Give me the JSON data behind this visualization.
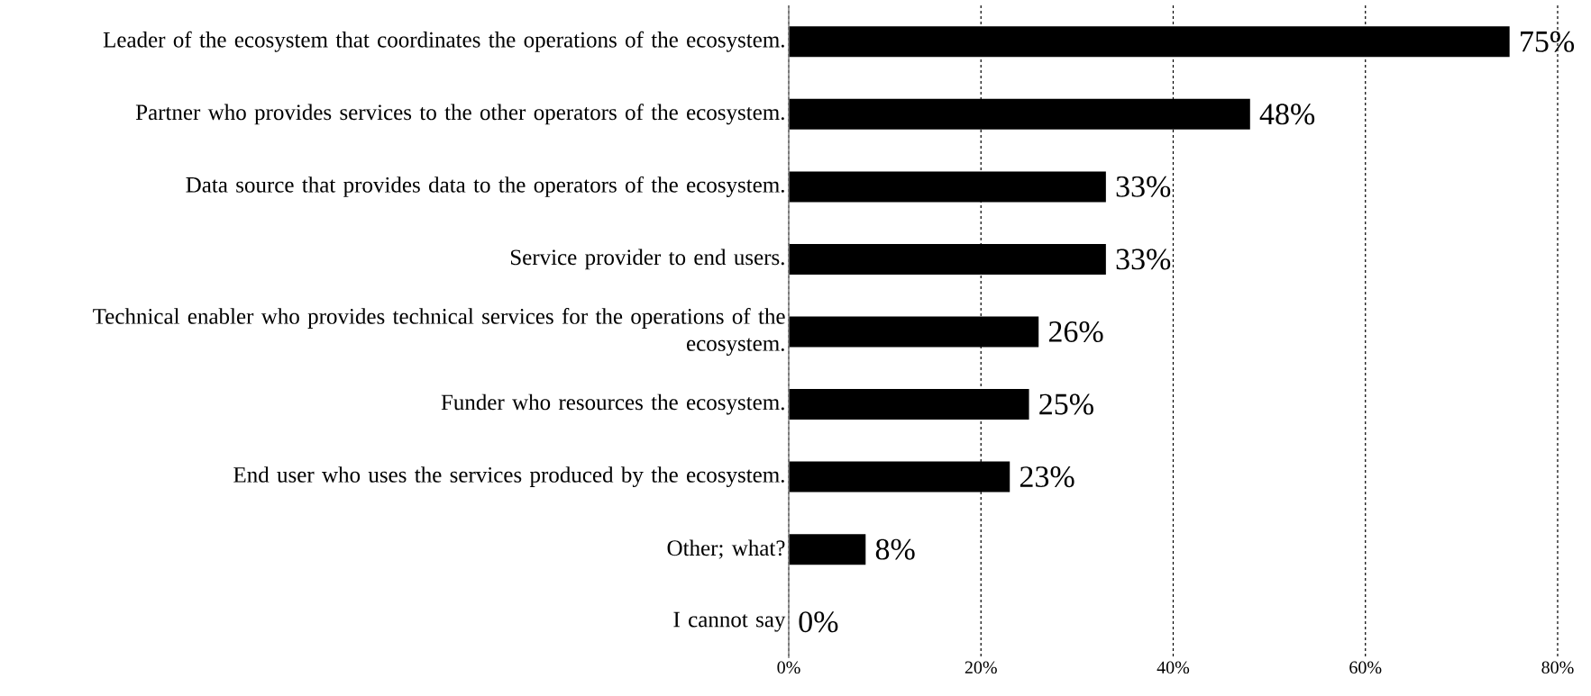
{
  "chart_data": {
    "type": "bar",
    "orientation": "horizontal",
    "categories": [
      "Leader of the ecosystem that coordinates the operations of the ecosystem.",
      "Partner who provides services to the other operators of the ecosystem.",
      "Data source that provides data to the operators of the ecosystem.",
      "Service provider to end users.",
      "Technical enabler who provides technical services for the operations of the ecosystem.",
      "Funder who resources the ecosystem.",
      "End user who uses the services produced by the ecosystem.",
      "Other; what?",
      "I cannot say"
    ],
    "values": [
      75,
      48,
      33,
      33,
      26,
      25,
      23,
      8,
      0
    ],
    "value_labels": [
      "75%",
      "48%",
      "33%",
      "33%",
      "26%",
      "25%",
      "23%",
      "8%",
      "0%"
    ],
    "color": "#000000",
    "xlim": [
      0,
      80
    ],
    "xticks": [
      {
        "value": 0,
        "label": "0%"
      },
      {
        "value": 20,
        "label": "20%"
      },
      {
        "value": 40,
        "label": "40%"
      },
      {
        "value": 60,
        "label": "60%"
      },
      {
        "value": 80,
        "label": "80%"
      }
    ],
    "grid": "x"
  }
}
